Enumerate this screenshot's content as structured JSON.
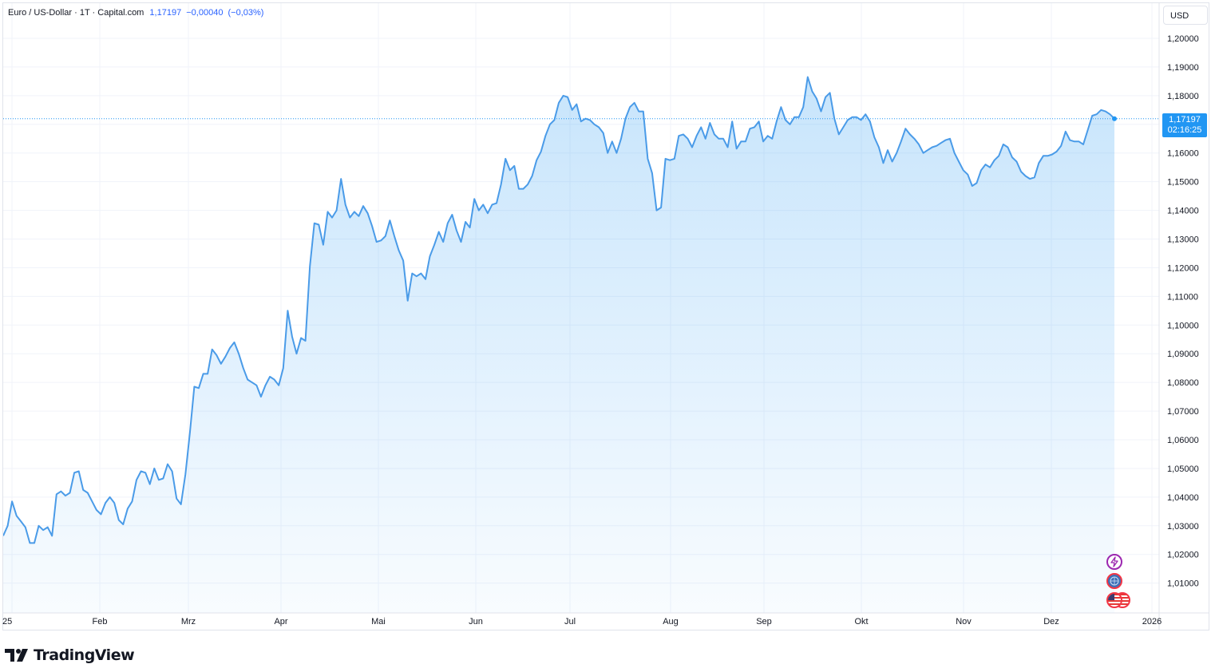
{
  "legend": {
    "symbol": "Euro / US-Dollar · 1T · Capital.com",
    "last": "1,17197",
    "change": "−0,00040",
    "change_pct": "(−0,03%)"
  },
  "currency_button": "USD",
  "price_label": {
    "price": "1,17197",
    "countdown": "02:16:25"
  },
  "brand": {
    "name": "TradingView"
  },
  "colors": {
    "line": "#4a9be8",
    "fill": "#2196f3",
    "label": "#2196f3"
  },
  "event_icons": [
    "lightning-icon",
    "globe-icon",
    "flag-us-icon"
  ],
  "chart_data": {
    "type": "area",
    "series": [
      {
        "values": [
          1.0265,
          1.03,
          1.0385,
          1.0335,
          1.0315,
          1.0295,
          1.024,
          1.024,
          1.03,
          1.0285,
          1.0295,
          1.0265,
          1.041,
          1.042,
          1.0405,
          1.0415,
          1.0485,
          1.049,
          1.0425,
          1.0415,
          1.0385,
          1.0355,
          1.034,
          1.038,
          1.04,
          1.038,
          1.032,
          1.0305,
          1.036,
          1.0385,
          1.046,
          1.049,
          1.0485,
          1.0445,
          1.05,
          1.046,
          1.0465,
          1.0515,
          1.049,
          1.0395,
          1.0375,
          1.048,
          1.0625,
          1.0785,
          1.078,
          1.083,
          1.083,
          1.0915,
          1.0895,
          1.0865,
          1.089,
          1.092,
          1.094,
          1.09,
          1.085,
          1.081,
          1.08,
          1.079,
          1.075,
          1.079,
          1.082,
          1.081,
          1.079,
          1.085,
          1.105,
          1.096,
          1.09,
          1.0955,
          1.0945,
          1.1205,
          1.1355,
          1.135,
          1.128,
          1.1395,
          1.1375,
          1.14,
          1.151,
          1.142,
          1.1375,
          1.1395,
          1.138,
          1.1415,
          1.139,
          1.1345,
          1.129,
          1.1295,
          1.131,
          1.1365,
          1.131,
          1.126,
          1.1225,
          1.1085,
          1.118,
          1.117,
          1.118,
          1.116,
          1.124,
          1.128,
          1.1325,
          1.129,
          1.1355,
          1.1385,
          1.133,
          1.129,
          1.136,
          1.134,
          1.144,
          1.14,
          1.142,
          1.139,
          1.142,
          1.1425,
          1.149,
          1.158,
          1.154,
          1.1555,
          1.1475,
          1.1475,
          1.149,
          1.152,
          1.1575,
          1.1605,
          1.166,
          1.17,
          1.1715,
          1.1775,
          1.18,
          1.1795,
          1.175,
          1.177,
          1.171,
          1.172,
          1.1715,
          1.17,
          1.169,
          1.167,
          1.16,
          1.164,
          1.16,
          1.165,
          1.172,
          1.176,
          1.1775,
          1.1745,
          1.1745,
          1.158,
          1.153,
          1.14,
          1.141,
          1.158,
          1.1575,
          1.158,
          1.166,
          1.1665,
          1.165,
          1.162,
          1.166,
          1.169,
          1.165,
          1.1705,
          1.1665,
          1.165,
          1.165,
          1.162,
          1.171,
          1.1615,
          1.164,
          1.164,
          1.1685,
          1.169,
          1.171,
          1.164,
          1.166,
          1.165,
          1.171,
          1.176,
          1.1715,
          1.17,
          1.1725,
          1.1725,
          1.176,
          1.1865,
          1.1815,
          1.179,
          1.1745,
          1.1795,
          1.181,
          1.172,
          1.1665,
          1.169,
          1.1715,
          1.1725,
          1.1725,
          1.1715,
          1.1735,
          1.171,
          1.1655,
          1.162,
          1.1565,
          1.161,
          1.157,
          1.16,
          1.164,
          1.1685,
          1.1665,
          1.165,
          1.163,
          1.16,
          1.161,
          1.162,
          1.1625,
          1.1635,
          1.1645,
          1.165,
          1.16,
          1.157,
          1.154,
          1.1525,
          1.1485,
          1.1495,
          1.154,
          1.156,
          1.155,
          1.1575,
          1.159,
          1.163,
          1.162,
          1.1585,
          1.157,
          1.1535,
          1.152,
          1.151,
          1.1515,
          1.1565,
          1.159,
          1.159,
          1.1595,
          1.1605,
          1.1625,
          1.1675,
          1.1645,
          1.164,
          1.164,
          1.163,
          1.168,
          1.173,
          1.1735,
          1.175,
          1.1745,
          1.1735,
          1.172
        ]
      }
    ],
    "x_tick_labels": [
      "25",
      "Feb",
      "Mrz",
      "Apr",
      "Mai",
      "Jun",
      "Jul",
      "Aug",
      "Sep",
      "Okt",
      "Nov",
      "Dez",
      "2026"
    ],
    "y_tick_labels": [
      "1,20000",
      "1,19000",
      "1,18000",
      "1,17000",
      "1,16000",
      "1,15000",
      "1,14000",
      "1,13000",
      "1,12000",
      "1,11000",
      "1,10000",
      "1,09000",
      "1,08000",
      "1,07000",
      "1,06000",
      "1,05000",
      "1,04000",
      "1,03000",
      "1,02000",
      "1,01000"
    ],
    "y_ticks": [
      1.2,
      1.19,
      1.18,
      1.17,
      1.16,
      1.15,
      1.14,
      1.13,
      1.12,
      1.11,
      1.1,
      1.09,
      1.08,
      1.07,
      1.06,
      1.05,
      1.04,
      1.03,
      1.02,
      1.01
    ],
    "last_value": 1.17197,
    "grid": true,
    "legend_position": "top-left"
  }
}
